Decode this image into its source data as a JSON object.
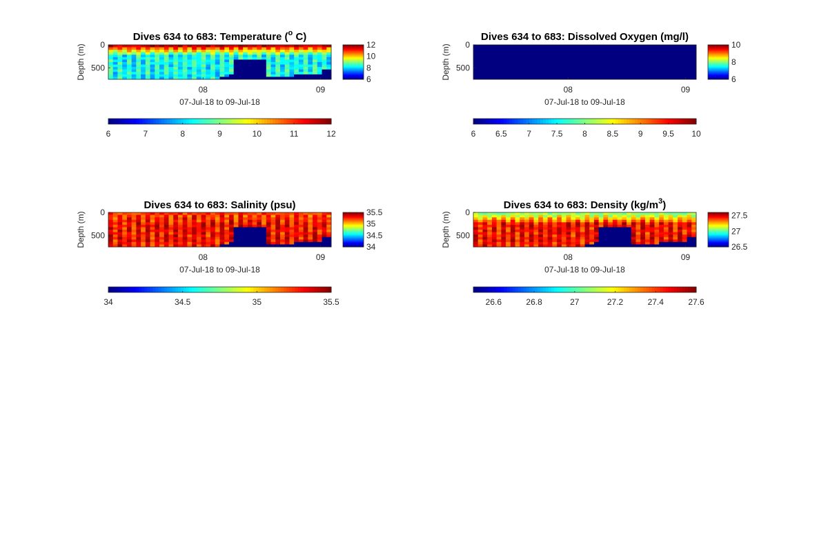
{
  "figure": {
    "xlabel": "07-Jul-18 to 09-Jul-18",
    "ylabel": "Depth (m)",
    "y_ticks": [
      "0",
      "500"
    ],
    "x_ticks": [
      "08",
      "09"
    ]
  },
  "chart_data": [
    {
      "type": "heatmap",
      "title_prefix": "Dives 634 to 683: Temperature (",
      "title_sup": "o",
      "title_suffix": " C)",
      "variable": "Temperature",
      "x_range": [
        "07-Jul-18",
        "09-Jul-18"
      ],
      "y_range": [
        0,
        750
      ],
      "y_reversed": true,
      "clim": [
        6,
        12
      ],
      "colorbar_side_ticks": [
        "12",
        "10",
        "8",
        "6"
      ],
      "colorbar_side_values": [
        12,
        10,
        8,
        6
      ],
      "colorbar_bottom_ticks": [
        "6",
        "7",
        "8",
        "9",
        "10",
        "11",
        "12"
      ],
      "colorbar_bottom_values": [
        6,
        7,
        8,
        9,
        10,
        11,
        12
      ],
      "surface_value": 11.4,
      "deep_value": 8.3,
      "fill_gaps": true
    },
    {
      "type": "heatmap",
      "title_prefix": "Dives 634 to 683: Dissolved Oxygen (mg/l)",
      "title_sup": "",
      "title_suffix": "",
      "variable": "Dissolved Oxygen",
      "x_range": [
        "07-Jul-18",
        "09-Jul-18"
      ],
      "y_range": [
        0,
        750
      ],
      "y_reversed": true,
      "clim": [
        6,
        10
      ],
      "colorbar_side_ticks": [
        "10",
        "8",
        "6"
      ],
      "colorbar_side_values": [
        10,
        8,
        6
      ],
      "colorbar_bottom_ticks": [
        "6",
        "6.5",
        "7",
        "7.5",
        "8",
        "8.5",
        "9",
        "9.5",
        "10"
      ],
      "colorbar_bottom_values": [
        6,
        6.5,
        7,
        7.5,
        8,
        8.5,
        9,
        9.5,
        10
      ],
      "uniform_value": 6,
      "fill_gaps": false
    },
    {
      "type": "heatmap",
      "title_prefix": "Dives 634 to 683: Salinity (psu)",
      "title_sup": "",
      "title_suffix": "",
      "variable": "Salinity",
      "x_range": [
        "07-Jul-18",
        "09-Jul-18"
      ],
      "y_range": [
        0,
        750
      ],
      "y_reversed": true,
      "clim": [
        34,
        35.5
      ],
      "colorbar_side_ticks": [
        "35.5",
        "35",
        "34.5",
        "34"
      ],
      "colorbar_side_values": [
        35.5,
        35,
        34.5,
        34
      ],
      "colorbar_bottom_ticks": [
        "34",
        "34.5",
        "35",
        "35.5"
      ],
      "colorbar_bottom_values": [
        34,
        34.5,
        35,
        35.5
      ],
      "surface_value": 35.2,
      "deep_value": 35.3,
      "fill_gaps": true
    },
    {
      "type": "heatmap",
      "title_prefix": "Dives 634 to 683: Density (kg/m",
      "title_sup": "3",
      "title_suffix": ")",
      "variable": "Density",
      "x_range": [
        "07-Jul-18",
        "09-Jul-18"
      ],
      "y_range": [
        0,
        750
      ],
      "y_reversed": true,
      "clim": [
        26.5,
        27.6
      ],
      "colorbar_side_ticks": [
        "27.5",
        "27",
        "26.5"
      ],
      "colorbar_side_values": [
        27.5,
        27,
        26.5
      ],
      "colorbar_bottom_ticks": [
        "26.6",
        "26.8",
        "27",
        "27.2",
        "27.4",
        "27.6"
      ],
      "colorbar_bottom_values": [
        26.6,
        26.8,
        27,
        27.2,
        27.4,
        27.6
      ],
      "surface_value": 27.05,
      "deep_value": 27.45,
      "fill_gaps": true
    }
  ]
}
